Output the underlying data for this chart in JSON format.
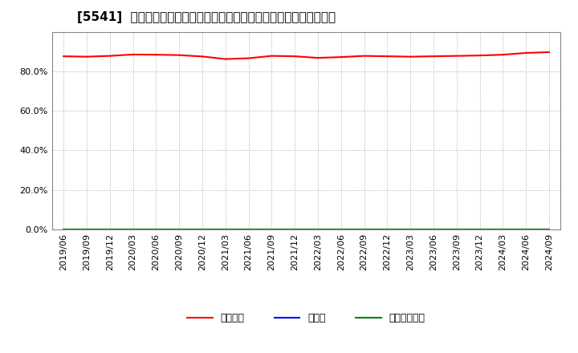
{
  "title": "[5541]  自己資本、のれん、繰延税金資産の総資産に対する比率の推移",
  "x_labels": [
    "2019/06",
    "2019/09",
    "2019/12",
    "2020/03",
    "2020/06",
    "2020/09",
    "2020/12",
    "2021/03",
    "2021/06",
    "2021/09",
    "2021/12",
    "2022/03",
    "2022/06",
    "2022/09",
    "2022/12",
    "2023/03",
    "2023/06",
    "2023/09",
    "2023/12",
    "2024/03",
    "2024/06",
    "2024/09"
  ],
  "equity_ratio": [
    0.876,
    0.874,
    0.878,
    0.885,
    0.884,
    0.882,
    0.875,
    0.862,
    0.866,
    0.878,
    0.876,
    0.868,
    0.872,
    0.878,
    0.876,
    0.874,
    0.876,
    0.878,
    0.88,
    0.884,
    0.893,
    0.897
  ],
  "goodwill_ratio": [
    0.0,
    0.0,
    0.0,
    0.0,
    0.0,
    0.0,
    0.0,
    0.0,
    0.0,
    0.0,
    0.0,
    0.0,
    0.0,
    0.0,
    0.0,
    0.0,
    0.0,
    0.0,
    0.0,
    0.0,
    0.0,
    0.0
  ],
  "deferred_tax_ratio": [
    0.0,
    0.0,
    0.0,
    0.0,
    0.0,
    0.0,
    0.0,
    0.0,
    0.0,
    0.0,
    0.0,
    0.0,
    0.0,
    0.0,
    0.0,
    0.0,
    0.0,
    0.0,
    0.0,
    0.0,
    0.0,
    0.0
  ],
  "equity_color": "#ff0000",
  "goodwill_color": "#0000ff",
  "deferred_tax_color": "#008000",
  "legend_labels": [
    "自己資本",
    "のれん",
    "繰延税金資産"
  ],
  "ylim": [
    0.0,
    1.0
  ],
  "yticks": [
    0.0,
    0.2,
    0.4,
    0.6,
    0.8
  ],
  "background_color": "#ffffff",
  "plot_bg_color": "#ffffff",
  "grid_color": "#aaaaaa",
  "title_fontsize": 11,
  "tick_fontsize": 8,
  "legend_fontsize": 9
}
